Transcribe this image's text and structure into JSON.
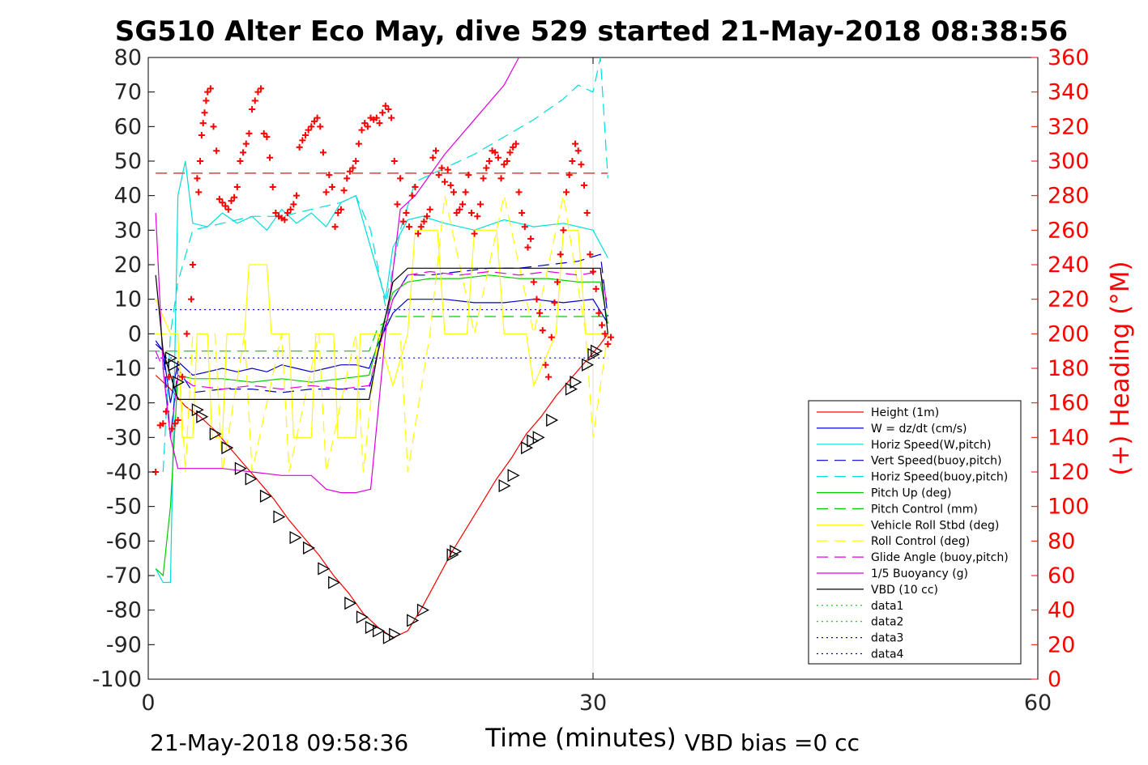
{
  "chart_data": {
    "type": "line",
    "title": "SG510 Alter Eco May, dive 529 started 21-May-2018 08:38:56",
    "xlabel": "Time (minutes)",
    "ylabel": "",
    "y2label": "(+) Heading (°M)",
    "xlim": [
      0,
      60
    ],
    "ylim": [
      -100,
      80
    ],
    "y2lim": [
      0,
      360
    ],
    "xticks": [
      "0",
      "30",
      "60"
    ],
    "yticks": [
      "80",
      "70",
      "60",
      "50",
      "40",
      "30",
      "20",
      "10",
      "0",
      "-10",
      "-20",
      "-30",
      "-40",
      "-50",
      "-60",
      "-70",
      "-80",
      "-90",
      "-100"
    ],
    "y2ticks": [
      "360",
      "340",
      "320",
      "300",
      "280",
      "260",
      "240",
      "220",
      "200",
      "180",
      "160",
      "140",
      "120",
      "100",
      "80",
      "60",
      "40",
      "20",
      "0"
    ],
    "footer_left": "21-May-2018 09:58:36",
    "footer_right": "VBD bias =0 cc",
    "colors": {
      "axes": "#000000",
      "right_axis": "#ff0000"
    },
    "series": [
      {
        "name": "Height (1m)",
        "color": "#ff0000",
        "style": "solid",
        "x": [
          0.5,
          1.5,
          2.5,
          3.5,
          4.5,
          5.5,
          6.5,
          7.5,
          8.5,
          9.5,
          10.5,
          11.5,
          12.5,
          13.5,
          14.5,
          15.5,
          16.5,
          17.5,
          18.5,
          19.5,
          20.5,
          21.5,
          22.5,
          23.5,
          24.5,
          25.5,
          26.5,
          27.5,
          28.5,
          29.5,
          30.5,
          31.0
        ],
        "y": [
          -12,
          -16,
          -21,
          -24,
          -28,
          -33,
          -38,
          -43,
          -48,
          -54,
          -59,
          -64,
          -70,
          -75,
          -81,
          -85,
          -88,
          -86,
          -79,
          -71,
          -63,
          -56,
          -49,
          -42,
          -36,
          -29,
          -24,
          -18,
          -13,
          -8,
          -3,
          0
        ]
      },
      {
        "name": "W = dz/dt (cm/s)",
        "color": "#0000cc",
        "style": "solid",
        "x": [
          0.5,
          1.0,
          1.5,
          2.0,
          3,
          4,
          5,
          6,
          7,
          8,
          9,
          10,
          11,
          12,
          13,
          14,
          14.9,
          15.5,
          16.5,
          17.5,
          18.5,
          20,
          22,
          24,
          26,
          28,
          30,
          31.0
        ],
        "y": [
          -2,
          -5,
          -20,
          -8,
          -12,
          -11,
          -10,
          -11,
          -10,
          -11,
          -9,
          -10,
          -11,
          -10,
          -9,
          -9,
          -10,
          -3,
          6,
          10,
          10,
          10,
          9,
          9,
          10,
          9,
          10,
          3
        ]
      },
      {
        "name": "Horiz Speed(W,pitch)",
        "color": "#00dddd",
        "style": "solid",
        "x": [
          0.5,
          1.0,
          1.5,
          2.0,
          2.5,
          3,
          4,
          5,
          6,
          7,
          8,
          9,
          10,
          11,
          12,
          13,
          14,
          15,
          16,
          16.5,
          17.5,
          18.5,
          20,
          22,
          24,
          26,
          28,
          30,
          31.0
        ],
        "y": [
          -68,
          -72,
          -72,
          40,
          50,
          32,
          31,
          35,
          32,
          34,
          30,
          36,
          32,
          35,
          31,
          38,
          40,
          25,
          10,
          25,
          33,
          34,
          32,
          30,
          33,
          31,
          32,
          30,
          22
        ]
      },
      {
        "name": "Vert Speed(buoy,pitch)",
        "color": "#0000cc",
        "style": "dash",
        "x": [
          0.5,
          1.0,
          1.5,
          2.0,
          3,
          5,
          7,
          9,
          11,
          13,
          14.9,
          15.5,
          16.5,
          17.5,
          19,
          21,
          23,
          25,
          27,
          29,
          30.5,
          31.0
        ],
        "y": [
          -3,
          -5,
          -30,
          -10,
          -17,
          -16,
          -16,
          -17,
          -16,
          -16,
          -16,
          -5,
          10,
          17,
          17,
          18,
          19,
          19,
          20,
          21,
          23,
          5
        ]
      },
      {
        "name": "Horiz Speed(buoy,pitch)",
        "color": "#00dddd",
        "style": "dash",
        "x": [
          1.0,
          1.5,
          2.0,
          3,
          5,
          7,
          9,
          11,
          13,
          14,
          15,
          16,
          17,
          18,
          20,
          22,
          24,
          26,
          28,
          29,
          30,
          30.5,
          31.0
        ],
        "y": [
          -40,
          0,
          15,
          30,
          32,
          34,
          34,
          36,
          38,
          40,
          30,
          8,
          30,
          44,
          48,
          52,
          57,
          62,
          68,
          72,
          70,
          80,
          45
        ]
      },
      {
        "name": "Pitch Up (deg)",
        "color": "#00cc00",
        "style": "solid",
        "x": [
          0.5,
          1.0,
          1.5,
          2.0,
          3,
          5,
          7,
          9,
          11,
          13,
          14.9,
          15.5,
          16.5,
          17.5,
          19,
          21,
          23,
          25,
          27,
          29,
          30.5,
          31.0
        ],
        "y": [
          -68,
          -70,
          -50,
          -12,
          -13,
          -13,
          -14,
          -13,
          -14,
          -13,
          -12,
          -2,
          12,
          15,
          16,
          16,
          17,
          16,
          16,
          15,
          15,
          3
        ]
      },
      {
        "name": "Pitch Control (mm)",
        "color": "#00cc00",
        "style": "dash",
        "x": [
          0,
          1.0,
          2.0,
          3,
          5,
          7,
          9,
          11,
          13,
          14.9,
          15.5,
          16.5,
          17.5,
          19,
          21,
          23,
          25,
          27,
          29,
          31.0
        ],
        "y": [
          -5,
          -5,
          -5,
          -5,
          -5,
          -5,
          -5,
          -5,
          -5,
          -5,
          2,
          5,
          5,
          5,
          5,
          5,
          5,
          5,
          5,
          5
        ]
      },
      {
        "name": "Vehicle Roll Stbd (deg)",
        "color": "#ffff00",
        "style": "solid",
        "x": [
          0.5,
          1.5,
          2.0,
          2.3,
          3.0,
          3.3,
          4.0,
          4.3,
          5.0,
          5.3,
          6.5,
          6.8,
          8.0,
          8.3,
          9.5,
          9.8,
          11.0,
          11.3,
          12.5,
          12.8,
          14.0,
          14.3,
          15.5,
          16.5,
          17.5,
          18.0,
          19.5,
          20.0,
          21.5,
          22.0,
          23.5,
          24.0,
          25.5,
          26.0,
          27.5,
          28.0,
          29.0,
          29.5,
          30.5,
          31.0
        ],
        "y": [
          10,
          0,
          0,
          -30,
          -30,
          0,
          0,
          -30,
          -30,
          0,
          0,
          20,
          20,
          0,
          0,
          -30,
          -30,
          0,
          0,
          -30,
          -30,
          0,
          0,
          -15,
          0,
          30,
          30,
          0,
          0,
          30,
          30,
          0,
          0,
          -15,
          0,
          30,
          30,
          0,
          0,
          0
        ]
      },
      {
        "name": "Roll Control (deg)",
        "color": "#ffff00",
        "style": "dash",
        "x": [
          0.5,
          2.0,
          2.5,
          3.0,
          4.5,
          5.0,
          6.5,
          7.0,
          9.0,
          9.5,
          11.5,
          12.0,
          14.0,
          14.5,
          15.5,
          17.0,
          17.5,
          19.0,
          20.0,
          22.0,
          24.0,
          26.0,
          28.0,
          29.5,
          30.0,
          31.0
        ],
        "y": [
          0,
          0,
          -40,
          0,
          0,
          -40,
          0,
          -40,
          0,
          -40,
          0,
          -40,
          0,
          -40,
          0,
          0,
          -40,
          0,
          40,
          0,
          40,
          0,
          40,
          0,
          -30,
          0
        ]
      },
      {
        "name": "Glide Angle (buoy,pitch)",
        "color": "#dd00dd",
        "style": "dash",
        "x": [
          0.5,
          1.0,
          1.5,
          2.0,
          3,
          5,
          7,
          9,
          11,
          13,
          14.9,
          15.5,
          16.5,
          17.5,
          19,
          21,
          23,
          25,
          27,
          29,
          30.5,
          31.0
        ],
        "y": [
          -5,
          -10,
          -30,
          -12,
          -15,
          -16,
          -15,
          -16,
          -15,
          -16,
          -15,
          -5,
          10,
          17,
          18,
          17,
          18,
          17,
          18,
          17,
          18,
          8
        ]
      },
      {
        "name": "1/5 Buoyancy (g)",
        "color": "#dd00dd",
        "style": "solid",
        "x": [
          0.5,
          1.0,
          1.5,
          2.0,
          3,
          5,
          7,
          9,
          11,
          12,
          13,
          14,
          15,
          16,
          17,
          18,
          20,
          22,
          24,
          25
        ],
        "y": [
          35,
          -10,
          -30,
          -39,
          -39,
          -39,
          -40,
          -41,
          -41,
          -45,
          -46,
          -46,
          -45,
          0,
          36,
          40,
          52,
          62,
          72,
          80
        ]
      },
      {
        "name": "VBD (10 cc)",
        "color": "#000000",
        "style": "solid",
        "x": [
          0.5,
          1.0,
          1.5,
          2.0,
          3,
          5,
          7,
          9,
          11,
          13,
          14.9,
          15.5,
          16.5,
          17.5,
          19,
          21,
          23,
          25,
          27,
          29,
          30.5,
          31.0
        ],
        "y": [
          17,
          -5,
          -12,
          -19,
          -19,
          -19,
          -19,
          -19,
          -19,
          -19,
          -19,
          -5,
          15,
          19,
          19,
          19,
          19,
          19,
          19,
          19,
          19,
          0
        ]
      },
      {
        "name": "data1",
        "color": "#00cc00",
        "style": "dot",
        "x": [],
        "y": []
      },
      {
        "name": "data2",
        "color": "#00cc00",
        "style": "dot",
        "x": [],
        "y": []
      },
      {
        "name": "data3",
        "color": "#0000cc",
        "style": "dot",
        "x": [],
        "y": []
      },
      {
        "name": "data4",
        "color": "#0000cc",
        "style": "dot",
        "x": [],
        "y": []
      }
    ],
    "reference_lines": [
      {
        "color": "#0000cc",
        "style": "dot",
        "y": 7,
        "x": [
          0.5,
          31
        ]
      },
      {
        "color": "#0000cc",
        "style": "dot",
        "y": -7,
        "x": [
          0.5,
          31
        ]
      },
      {
        "color": "#cc0000",
        "style": "dash",
        "y2": 293,
        "x": [
          0.5,
          31
        ]
      }
    ],
    "triangle_markers": {
      "x": [
        1.5,
        1.7,
        2.0,
        3.3,
        3.6,
        4.5,
        5.3,
        6.2,
        6.9,
        7.9,
        8.8,
        9.9,
        10.8,
        11.8,
        12.5,
        13.6,
        14.4,
        15.0,
        15.5,
        16.2,
        16.6,
        17.8,
        18.5,
        20.5,
        20.7,
        24.0,
        24.6,
        25.5,
        25.9,
        26.3,
        27.2,
        28.5,
        28.8,
        29.6,
        30.0,
        30.2
      ],
      "y": [
        -7,
        -9,
        -14,
        -22,
        -24,
        -29,
        -33,
        -39,
        -42,
        -47,
        -53,
        -59,
        -62,
        -68,
        -72,
        -78,
        -82,
        -85,
        -86,
        -88,
        -87,
        -83,
        -80,
        -64,
        -63,
        -44,
        -41,
        -33,
        -31,
        -30,
        -25,
        -16,
        -14,
        -9,
        -6,
        -5
      ]
    },
    "heading_points": {
      "x": [
        0.5,
        0.8,
        1.0,
        1.2,
        1.4,
        1.6,
        1.8,
        2.0,
        2.3,
        2.6,
        2.9,
        3.0,
        3.3,
        3.4,
        3.5,
        3.6,
        3.7,
        3.8,
        3.9,
        4.0,
        4.2,
        4.4,
        4.6,
        4.8,
        5.0,
        5.2,
        5.4,
        5.6,
        5.8,
        6.0,
        6.2,
        6.4,
        6.6,
        6.8,
        7.0,
        7.2,
        7.4,
        7.6,
        7.8,
        8.0,
        8.2,
        8.4,
        8.6,
        8.8,
        9.0,
        9.2,
        9.4,
        9.6,
        9.8,
        10.0,
        10.2,
        10.4,
        10.6,
        10.8,
        11.0,
        11.2,
        11.4,
        11.6,
        11.8,
        12.0,
        12.2,
        12.4,
        12.6,
        12.8,
        13.0,
        13.2,
        13.4,
        13.6,
        13.8,
        14.0,
        14.2,
        14.4,
        14.6,
        14.8,
        15.0,
        15.2,
        15.4,
        15.6,
        15.8,
        16.0,
        16.2,
        16.4,
        16.6,
        16.8,
        17.0,
        17.2,
        17.4,
        17.6,
        17.8,
        18.0,
        18.2,
        18.4,
        18.6,
        18.8,
        19.0,
        19.2,
        19.4,
        19.6,
        19.8,
        20.0,
        20.2,
        20.4,
        20.6,
        20.8,
        21.0,
        21.2,
        21.4,
        21.6,
        21.8,
        22.0,
        22.2,
        22.4,
        22.6,
        22.8,
        23.0,
        23.2,
        23.4,
        23.6,
        23.8,
        24.0,
        24.2,
        24.4,
        24.6,
        24.8,
        25.0,
        25.2,
        25.4,
        25.6,
        25.8,
        26.0,
        26.2,
        26.4,
        26.6,
        26.8,
        27.0,
        27.2,
        27.4,
        27.6,
        27.8,
        28.0,
        28.2,
        28.4,
        28.6,
        28.8,
        29.0,
        29.2,
        29.4,
        29.6,
        29.8,
        30.0,
        30.2,
        30.4,
        30.6,
        30.8,
        31.0,
        31.2
      ],
      "y": [
        120,
        147,
        148,
        155,
        175,
        145,
        148,
        150,
        175,
        200,
        220,
        240,
        290,
        282,
        300,
        315,
        322,
        328,
        335,
        340,
        342,
        320,
        306,
        278,
        276,
        274,
        272,
        277,
        279,
        285,
        300,
        305,
        310,
        316,
        330,
        335,
        340,
        342,
        316,
        314,
        302,
        285,
        270,
        268,
        267,
        266,
        270,
        272,
        275,
        280,
        308,
        312,
        315,
        318,
        320,
        323,
        325,
        320,
        305,
        282,
        292,
        285,
        262,
        270,
        272,
        283,
        290,
        294,
        296,
        300,
        310,
        318,
        322,
        320,
        325,
        324,
        325,
        322,
        328,
        332,
        330,
        325,
        300,
        275,
        290,
        265,
        270,
        262,
        280,
        285,
        258,
        262,
        265,
        268,
        272,
        302,
        306,
        292,
        296,
        288,
        295,
        286,
        282,
        270,
        272,
        275,
        282,
        292,
        270,
        258,
        268,
        275,
        290,
        296,
        300,
        306,
        305,
        302,
        290,
        298,
        300,
        305,
        308,
        310,
        282,
        270,
        262,
        250,
        255,
        230,
        220,
        212,
        202,
        182,
        175,
        198,
        218,
        230,
        246,
        260,
        282,
        292,
        300,
        310,
        306,
        298,
        286,
        270,
        246,
        236,
        226,
        212,
        205,
        200,
        194,
        198
      ]
    }
  }
}
